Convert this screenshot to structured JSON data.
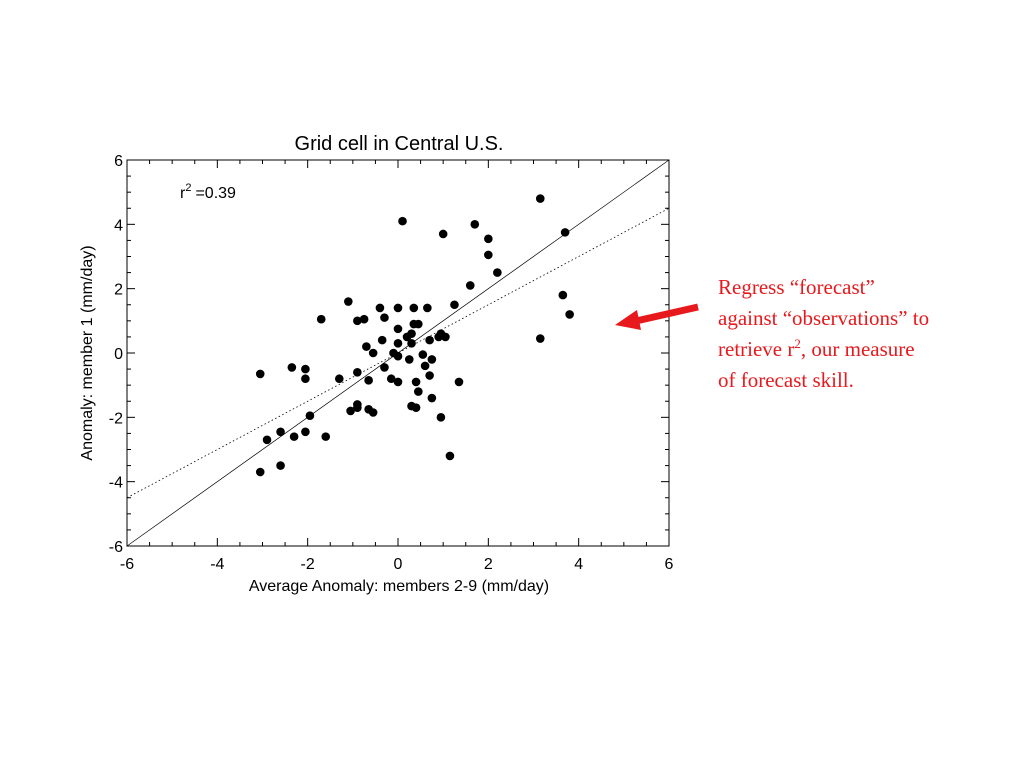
{
  "chart_data": {
    "type": "scatter",
    "title": "Grid cell in Central U.S.",
    "xlabel": "Average Anomaly: members 2-9 (mm/day)",
    "ylabel": "Anomaly: member 1 (mm/day)",
    "xlim": [
      -6,
      6
    ],
    "ylim": [
      -6,
      6
    ],
    "xticks": [
      "-6",
      "-4",
      "-2",
      "0",
      "2",
      "4",
      "6"
    ],
    "yticks": [
      "-6",
      "-4",
      "-2",
      "0",
      "2",
      "4",
      "6"
    ],
    "grid": false,
    "annotation": {
      "base": "r",
      "exponent": "2",
      "text": "=0.39"
    },
    "lines": [
      {
        "style": "solid",
        "x": [
          -6,
          6
        ],
        "y": [
          -6,
          6
        ]
      },
      {
        "style": "dotted",
        "x": [
          -6,
          6
        ],
        "y": [
          -4.5,
          4.5
        ]
      }
    ],
    "points": [
      [
        0.1,
        4.1
      ],
      [
        1.0,
        3.7
      ],
      [
        1.7,
        4.0
      ],
      [
        2.0,
        3.55
      ],
      [
        2.0,
        3.05
      ],
      [
        2.2,
        2.5
      ],
      [
        1.6,
        2.1
      ],
      [
        3.15,
        4.8
      ],
      [
        3.7,
        3.75
      ],
      [
        3.65,
        1.8
      ],
      [
        3.8,
        1.2
      ],
      [
        3.15,
        0.45
      ],
      [
        1.25,
        1.5
      ],
      [
        -1.1,
        1.6
      ],
      [
        -0.4,
        1.4
      ],
      [
        0.0,
        1.4
      ],
      [
        0.35,
        1.4
      ],
      [
        0.65,
        1.4
      ],
      [
        -1.7,
        1.05
      ],
      [
        -0.9,
        1.0
      ],
      [
        -0.75,
        1.05
      ],
      [
        -0.3,
        1.1
      ],
      [
        0.35,
        0.9
      ],
      [
        0.45,
        0.9
      ],
      [
        0.0,
        0.75
      ],
      [
        0.2,
        0.5
      ],
      [
        0.3,
        0.6
      ],
      [
        0.7,
        0.4
      ],
      [
        0.9,
        0.5
      ],
      [
        0.95,
        0.6
      ],
      [
        1.05,
        0.5
      ],
      [
        -0.35,
        0.4
      ],
      [
        -0.7,
        0.2
      ],
      [
        -0.55,
        0.0
      ],
      [
        0.0,
        0.3
      ],
      [
        0.3,
        0.3
      ],
      [
        -0.1,
        0.0
      ],
      [
        0.0,
        -0.1
      ],
      [
        0.25,
        -0.2
      ],
      [
        0.55,
        -0.05
      ],
      [
        0.75,
        -0.2
      ],
      [
        0.6,
        -0.4
      ],
      [
        0.7,
        -0.7
      ],
      [
        -0.3,
        -0.45
      ],
      [
        -1.3,
        -0.8
      ],
      [
        -0.9,
        -0.6
      ],
      [
        -0.65,
        -0.85
      ],
      [
        -0.15,
        -0.8
      ],
      [
        0.0,
        -0.9
      ],
      [
        0.4,
        -0.9
      ],
      [
        1.35,
        -0.9
      ],
      [
        0.45,
        -1.2
      ],
      [
        0.75,
        -1.4
      ],
      [
        -3.05,
        -0.65
      ],
      [
        -2.35,
        -0.45
      ],
      [
        -2.05,
        -0.5
      ],
      [
        -2.05,
        -0.8
      ],
      [
        -1.05,
        -1.8
      ],
      [
        -0.9,
        -1.6
      ],
      [
        -0.9,
        -1.7
      ],
      [
        -0.65,
        -1.75
      ],
      [
        -0.55,
        -1.85
      ],
      [
        0.3,
        -1.65
      ],
      [
        0.4,
        -1.7
      ],
      [
        0.95,
        -2.0
      ],
      [
        -1.95,
        -1.95
      ],
      [
        -2.6,
        -2.45
      ],
      [
        -2.9,
        -2.7
      ],
      [
        -2.3,
        -2.6
      ],
      [
        -2.05,
        -2.45
      ],
      [
        -1.6,
        -2.6
      ],
      [
        -3.05,
        -3.7
      ],
      [
        -2.6,
        -3.5
      ],
      [
        1.15,
        -3.2
      ]
    ]
  },
  "note": {
    "line1": "Regress “forecast”",
    "line2": "against “observations” to",
    "line3_a": "retrieve r",
    "line3_sup": "2",
    "line3_b": ", our measure",
    "line4": "of forecast skill."
  },
  "colors": {
    "note_text": "#e8191d",
    "arrow": "#e8191d",
    "points": "#000000"
  }
}
